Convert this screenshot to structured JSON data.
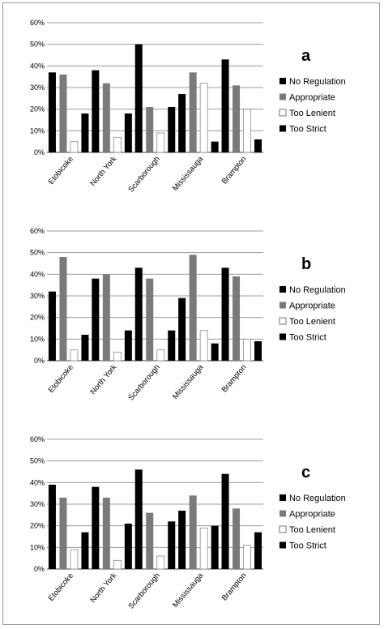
{
  "chart_data": [
    {
      "type": "bar",
      "panel_label": "a",
      "categories": [
        "Etobicoke",
        "North York",
        "Scarborough",
        "Mississauga",
        "Brampton"
      ],
      "y_ticks": [
        "0%",
        "10%",
        "20%",
        "30%",
        "40%",
        "50%",
        "60%"
      ],
      "ylim": [
        0,
        60
      ],
      "grid": "horizontal",
      "legend_position": "right",
      "series": [
        {
          "name": "No Regulation",
          "color": "#000000",
          "values": [
            37,
            38,
            50,
            27,
            43
          ]
        },
        {
          "name": "Appropriate",
          "color": "#7a7a7a",
          "values": [
            36,
            32,
            21,
            37,
            31
          ]
        },
        {
          "name": "Too Lenient",
          "color": "#ffffff",
          "values": [
            5,
            7,
            9,
            32,
            20
          ]
        },
        {
          "name": "Too Strict",
          "color": "#000000",
          "values": [
            18,
            18,
            21,
            5,
            6
          ]
        }
      ]
    },
    {
      "type": "bar",
      "panel_label": "b",
      "categories": [
        "Etobicoke",
        "North York",
        "Scarborough",
        "Mississauga",
        "Brampton"
      ],
      "y_ticks": [
        "0%",
        "10%",
        "20%",
        "30%",
        "40%",
        "50%",
        "60%"
      ],
      "ylim": [
        0,
        60
      ],
      "grid": "horizontal",
      "legend_position": "right",
      "series": [
        {
          "name": "No Regulation",
          "color": "#000000",
          "values": [
            32,
            38,
            43,
            29,
            43
          ]
        },
        {
          "name": "Appropriate",
          "color": "#7a7a7a",
          "values": [
            48,
            40,
            38,
            49,
            39
          ]
        },
        {
          "name": "Too Lenient",
          "color": "#ffffff",
          "values": [
            5,
            4,
            5,
            14,
            10
          ]
        },
        {
          "name": "Too Strict",
          "color": "#000000",
          "values": [
            12,
            14,
            14,
            8,
            9
          ]
        }
      ]
    },
    {
      "type": "bar",
      "panel_label": "c",
      "categories": [
        "Etobicoke",
        "North York",
        "Scarborough",
        "Mississauga",
        "Brampton"
      ],
      "y_ticks": [
        "0%",
        "10%",
        "20%",
        "30%",
        "40%",
        "50%",
        "60%"
      ],
      "ylim": [
        0,
        60
      ],
      "grid": "horizontal",
      "legend_position": "right",
      "series": [
        {
          "name": "No Regulation",
          "color": "#000000",
          "values": [
            39,
            38,
            46,
            27,
            44
          ]
        },
        {
          "name": "Appropriate",
          "color": "#7a7a7a",
          "values": [
            33,
            33,
            26,
            34,
            28
          ]
        },
        {
          "name": "Too Lenient",
          "color": "#ffffff",
          "values": [
            9,
            4,
            6,
            19,
            11
          ]
        },
        {
          "name": "Too Strict",
          "color": "#000000",
          "values": [
            17,
            21,
            22,
            20,
            17
          ]
        }
      ]
    }
  ]
}
